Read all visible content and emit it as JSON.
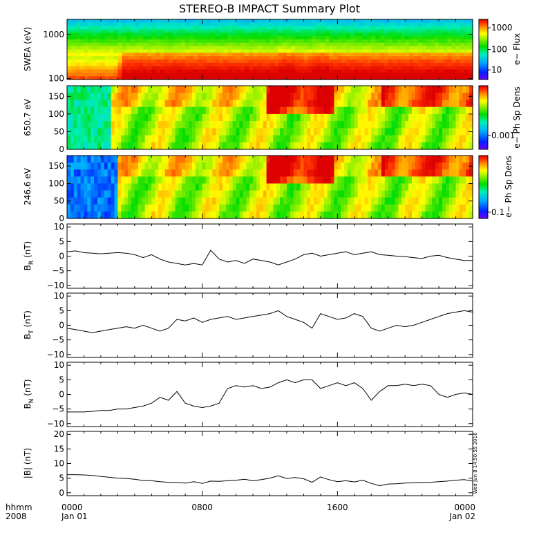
{
  "title": "STEREO-B IMPACT Summary Plot",
  "timestamp_label": "Wed Jun  8 14:50:55 2016",
  "time_axis": {
    "left_labels": [
      "hhmm",
      "2008"
    ],
    "ticks": [
      {
        "hhmm": "0000",
        "date": "Jan 01",
        "hour": 0
      },
      {
        "hhmm": "0800",
        "date": "",
        "hour": 8
      },
      {
        "hhmm": "1600",
        "date": "",
        "hour": 16
      },
      {
        "hhmm": "0000",
        "date": "Jan 02",
        "hour": 24
      }
    ],
    "range_hours": [
      0,
      24
    ]
  },
  "chart_data": [
    {
      "type": "heatmap",
      "ylabel": "SWEA (eV)",
      "yscale": "log",
      "ylim": [
        95,
        2200
      ],
      "yticks": [
        {
          "v": 100,
          "label": "100"
        },
        {
          "v": 1000,
          "label": "1000"
        }
      ],
      "colorbar_label": "e− Flux",
      "colorbar_scale": "log",
      "colorbar_ticks": [
        "10",
        "100",
        "1000"
      ]
    },
    {
      "type": "heatmap",
      "ylabel": "650.7 eV",
      "ylim": [
        0,
        180
      ],
      "yticks": [
        "0",
        "50",
        "100",
        "150"
      ],
      "colorbar_label": "e− Ph Sp Dens",
      "colorbar_ticks": [
        "0.001"
      ]
    },
    {
      "type": "heatmap",
      "ylabel": "246.6 eV",
      "ylim": [
        0,
        180
      ],
      "yticks": [
        "0",
        "50",
        "100",
        "150"
      ],
      "colorbar_label": "e− Ph Sp Dens",
      "colorbar_ticks": [
        "0.1"
      ]
    },
    {
      "type": "line",
      "ylabel_main": "B",
      "ylabel_sub": "R",
      "ylabel_unit": " (nT)",
      "ylim": [
        -11,
        11
      ],
      "yticks": [
        "−10",
        "−5",
        "0",
        "5",
        "10"
      ],
      "x": [
        0,
        0.5,
        1,
        1.5,
        2,
        2.5,
        3,
        3.5,
        4,
        4.5,
        5,
        5.5,
        6,
        6.5,
        7,
        7.5,
        8,
        8.5,
        9,
        9.5,
        10,
        10.5,
        11,
        11.5,
        12,
        12.5,
        13,
        13.5,
        14,
        14.5,
        15,
        15.5,
        16,
        16.5,
        17,
        17.5,
        18,
        18.5,
        19,
        19.5,
        20,
        20.5,
        21,
        21.5,
        22,
        22.5,
        23,
        23.5,
        24
      ],
      "y": [
        1.5,
        1.8,
        1.2,
        1,
        0.8,
        1,
        1.2,
        1,
        0.5,
        -0.5,
        0.5,
        -1,
        -2,
        -2.5,
        -3,
        -2.5,
        -3,
        2,
        -1,
        -2,
        -1.5,
        -2.5,
        -1,
        -1.5,
        -2,
        -3,
        -2,
        -1,
        0.5,
        1,
        0,
        0.5,
        1,
        1.5,
        0.5,
        1,
        1.5,
        0.5,
        0.3,
        0,
        -0.2,
        -0.5,
        -0.8,
        0,
        0.3,
        -0.5,
        -1,
        -1.5,
        -1.5
      ]
    },
    {
      "type": "line",
      "ylabel_main": "B",
      "ylabel_sub": "T",
      "ylabel_unit": " (nT)",
      "ylim": [
        -11,
        11
      ],
      "yticks": [
        "−10",
        "−5",
        "0",
        "5",
        "10"
      ],
      "x": [
        0,
        0.5,
        1,
        1.5,
        2,
        2.5,
        3,
        3.5,
        4,
        4.5,
        5,
        5.5,
        6,
        6.5,
        7,
        7.5,
        8,
        8.5,
        9,
        9.5,
        10,
        10.5,
        11,
        11.5,
        12,
        12.5,
        13,
        13.5,
        14,
        14.5,
        15,
        15.5,
        16,
        16.5,
        17,
        17.5,
        18,
        18.5,
        19,
        19.5,
        20,
        20.5,
        21,
        21.5,
        22,
        22.5,
        23,
        23.5,
        24
      ],
      "y": [
        -1,
        -1.5,
        -2,
        -2.5,
        -2,
        -1.5,
        -1,
        -0.5,
        -1,
        0,
        -1,
        -2,
        -1,
        2,
        1.5,
        2.5,
        1,
        2,
        2.5,
        3,
        2,
        2.5,
        3,
        3.5,
        4,
        5,
        3,
        2,
        1,
        -1,
        4,
        3,
        2,
        2.5,
        4,
        3,
        -1,
        -2,
        -1,
        0,
        -0.5,
        0,
        1,
        2,
        3,
        4,
        4.5,
        5,
        4.5
      ]
    },
    {
      "type": "line",
      "ylabel_main": "B",
      "ylabel_sub": "N",
      "ylabel_unit": " (nT)",
      "ylim": [
        -11,
        11
      ],
      "yticks": [
        "−10",
        "−5",
        "0",
        "5",
        "10"
      ],
      "x": [
        0,
        0.5,
        1,
        1.5,
        2,
        2.5,
        3,
        3.5,
        4,
        4.5,
        5,
        5.5,
        6,
        6.5,
        7,
        7.5,
        8,
        8.5,
        9,
        9.5,
        10,
        10.5,
        11,
        11.5,
        12,
        12.5,
        13,
        13.5,
        14,
        14.5,
        15,
        15.5,
        16,
        16.5,
        17,
        17.5,
        18,
        18.5,
        19,
        19.5,
        20,
        20.5,
        21,
        21.5,
        22,
        22.5,
        23,
        23.5,
        24
      ],
      "y": [
        -6,
        -6,
        -6,
        -5.8,
        -5.5,
        -5.5,
        -5,
        -5,
        -4.5,
        -4,
        -3,
        -1,
        -2,
        1,
        -3,
        -4,
        -4.5,
        -4,
        -3,
        2,
        3,
        2.5,
        3,
        2,
        2.5,
        4,
        5,
        4,
        5,
        5,
        2,
        3,
        4,
        3,
        4,
        2,
        -2,
        1,
        3,
        3,
        3.5,
        3,
        3.5,
        3,
        0,
        -1,
        0,
        0.5,
        0
      ]
    },
    {
      "type": "line",
      "ylabel_main": "|B|",
      "ylabel_sub": "",
      "ylabel_unit": " (nT)",
      "ylim": [
        -1,
        21
      ],
      "yticks": [
        "0",
        "5",
        "10",
        "15",
        "20"
      ],
      "x": [
        0,
        0.5,
        1,
        1.5,
        2,
        2.5,
        3,
        3.5,
        4,
        4.5,
        5,
        5.5,
        6,
        6.5,
        7,
        7.5,
        8,
        8.5,
        9,
        9.5,
        10,
        10.5,
        11,
        11.5,
        12,
        12.5,
        13,
        13.5,
        14,
        14.5,
        15,
        15.5,
        16,
        16.5,
        17,
        17.5,
        18,
        18.5,
        19,
        19.5,
        20,
        20.5,
        21,
        21.5,
        22,
        22.5,
        23,
        23.5,
        24
      ],
      "y": [
        6.2,
        6.2,
        6.1,
        5.9,
        5.6,
        5.3,
        5,
        4.9,
        4.6,
        4.2,
        4.1,
        3.8,
        3.6,
        3.5,
        3.3,
        3.8,
        3.2,
        4,
        3.9,
        4.1,
        4.3,
        4.6,
        4.1,
        4.5,
        5,
        5.8,
        4.9,
        5.2,
        4.8,
        3.6,
        5.4,
        4.5,
        3.8,
        4.1,
        3.7,
        4.3,
        3.2,
        2.4,
        3,
        3.1,
        3.3,
        3.4,
        3.5,
        3.6,
        3.8,
        4,
        4.3,
        4.5,
        4
      ]
    }
  ],
  "colors": {
    "rainbow": [
      "#6a00ff",
      "#0022ff",
      "#00aaff",
      "#00eebb",
      "#00dd00",
      "#88ee00",
      "#ffff00",
      "#ff9900",
      "#ff3300",
      "#dd0000"
    ]
  }
}
